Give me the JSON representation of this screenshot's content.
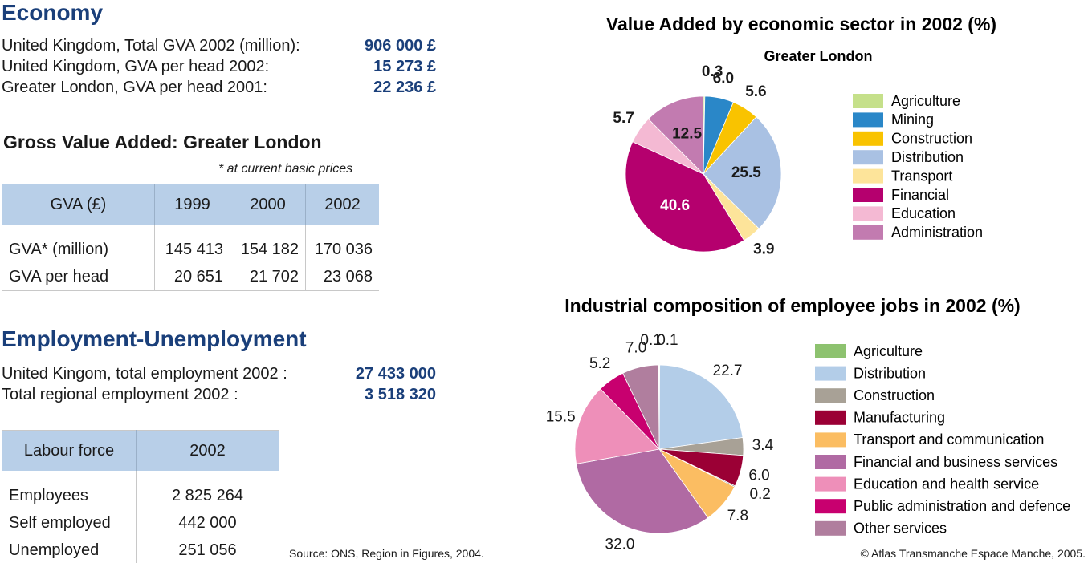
{
  "economy": {
    "title": "Economy",
    "items": [
      {
        "label": "United Kingdom, Total GVA 2002 (million):",
        "value": "906 000 £"
      },
      {
        "label": "United Kingdom, GVA per head 2002:",
        "value": "15 273 £"
      },
      {
        "label": "Greater London, GVA per head 2001:",
        "value": "22 236 £"
      }
    ]
  },
  "gva": {
    "title": "Gross Value Added: Greater London",
    "note": "* at current basic prices",
    "header": [
      "GVA (£)",
      "1999",
      "2000",
      "2002"
    ],
    "rows": [
      [
        "GVA* (million)",
        "145 413",
        "154 182",
        "170 036"
      ],
      [
        "GVA per head",
        "20 651",
        "21 702",
        "23 068"
      ]
    ]
  },
  "employment": {
    "title": "Employment-Unemployment",
    "items": [
      {
        "label": "United Kingom, total employment 2002 :",
        "value": "27 433 000"
      },
      {
        "label": "Total regional employment 2002 :",
        "value": "3 518 320"
      }
    ]
  },
  "labour": {
    "header": [
      "Labour force",
      "2002"
    ],
    "rows": [
      [
        "Employees",
        "2 825 264"
      ],
      [
        "Self employed",
        "442 000"
      ],
      [
        "Unemployed",
        "251 056"
      ]
    ]
  },
  "source": "Source: ONS, Region in Figures, 2004.",
  "copyright": "© Atlas Transmanche Espace Manche, 2005.",
  "chart_data": [
    {
      "type": "pie",
      "title": "Value Added by economic sector in 2002 (%)",
      "subtitle": "Greater London",
      "categories": [
        "Agriculture",
        "Mining",
        "Construction",
        "Distribution",
        "Transport",
        "Financial",
        "Education",
        "Administration"
      ],
      "values": [
        0.3,
        6.0,
        5.6,
        25.5,
        3.9,
        40.6,
        5.7,
        12.5
      ],
      "value_labels": [
        "0.3",
        "6.0",
        "5.6",
        "25.5",
        "3.9",
        "40.6",
        "5.7",
        "12.5"
      ],
      "colors": [
        "#c5e08a",
        "#2a87c8",
        "#f9c300",
        "#a9c1e3",
        "#fde49a",
        "#b5006e",
        "#f4b9d3",
        "#c27bb0"
      ]
    },
    {
      "type": "pie",
      "title": "Industrial composition of employee jobs in 2002 (%)",
      "categories": [
        "Agriculture",
        "Distribution",
        "Construction",
        "Manufacturing",
        null,
        "Transport and communication",
        "Financial and business services",
        "Education and health service",
        "Public administration and defence",
        "Other services",
        null
      ],
      "values": [
        0.1,
        22.7,
        3.4,
        6.0,
        0.2,
        7.8,
        32.0,
        15.5,
        5.2,
        7.0,
        0.1
      ],
      "value_labels": [
        "0.1",
        "22.7",
        "3.4",
        "6.0",
        "0.2",
        "7.8",
        "32.0",
        "15.5",
        "5.2",
        "7.0",
        "0.1"
      ],
      "colors": [
        "#8dc26f",
        "#b3cde8",
        "#a8a196",
        "#9b0035",
        "#5a5a5a",
        "#fbbd62",
        "#b06aa3",
        "#ee8fb9",
        "#c8006f",
        "#b07e9e",
        "#8a8a8a"
      ]
    }
  ]
}
